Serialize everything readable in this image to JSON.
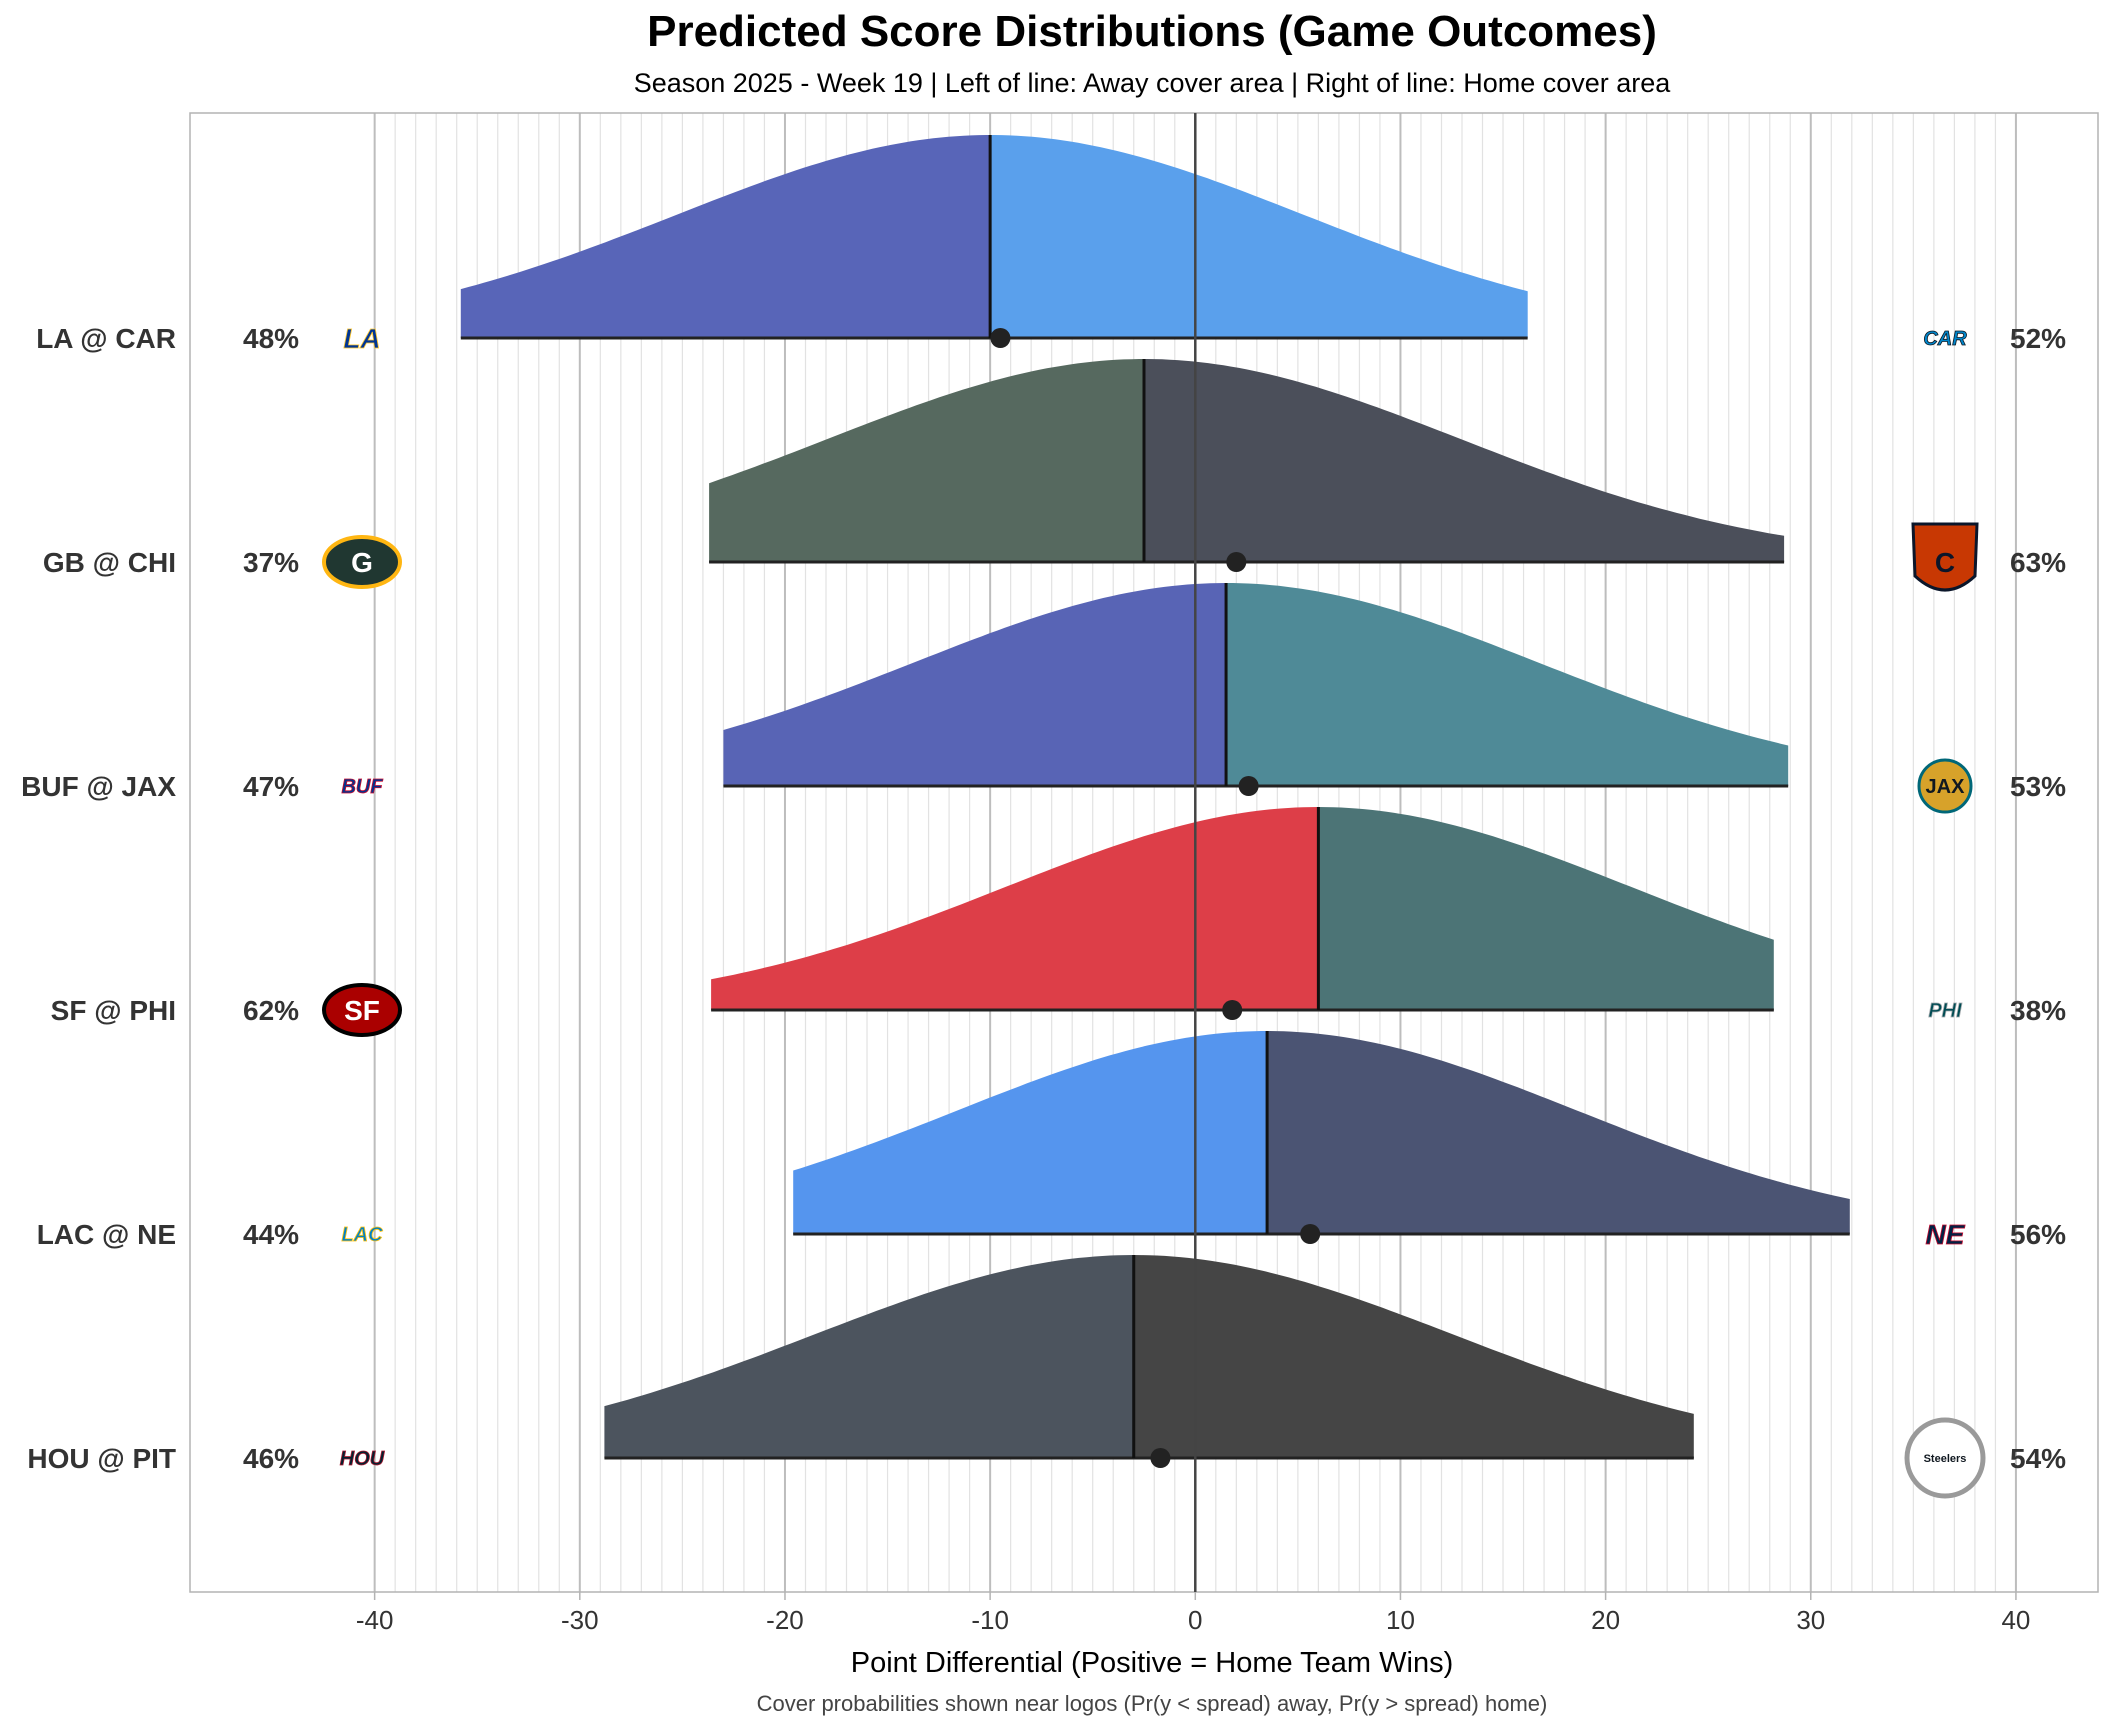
{
  "chart_data": {
    "type": "ridgeline",
    "title": "Predicted Score Distributions (Game Outcomes)",
    "subtitle": "Season 2025 - Week 19 | Left of line: Away cover area | Right of line: Home cover area",
    "xlabel": "Point Differential (Positive = Home Team Wins)",
    "caption": "Cover probabilities shown near logos (Pr(y < spread) away, Pr(y > spread) home)",
    "xlim": [
      -49,
      44
    ],
    "x_ticks": [
      -40,
      -30,
      -20,
      -10,
      0,
      10,
      20,
      30,
      40
    ],
    "x_tick_labels": [
      "-40",
      "-30",
      "-20",
      "-10",
      "0",
      "10",
      "20",
      "30",
      "40"
    ],
    "zero_line": 0,
    "games": [
      {
        "label": "LA @ CAR",
        "away": "LA",
        "home": "CAR",
        "range": [
          -35.8,
          16.2
        ],
        "mode": -10,
        "spread": -10,
        "predicted": -9.5,
        "away_pct": "48%",
        "home_pct": "52%",
        "away_color": "#5865b8",
        "home_color": "#5aa0ec",
        "away_logo": {
          "name": "rams-logo",
          "text": "LA",
          "bg": "#ffffff",
          "fg": "#003594",
          "accent": "#ffc72c",
          "shape": "plain"
        },
        "home_logo": {
          "name": "panthers-logo",
          "text": "CAR",
          "bg": "#ffffff",
          "fg": "#0085ca",
          "accent": "#101820",
          "shape": "plain"
        }
      },
      {
        "label": "GB @ CHI",
        "away": "GB",
        "home": "CHI",
        "range": [
          -23.7,
          28.7
        ],
        "mode": -2.5,
        "spread": -2.5,
        "predicted": 2,
        "away_pct": "37%",
        "home_pct": "63%",
        "away_color": "#56695f",
        "home_color": "#4b4f5a",
        "away_logo": {
          "name": "packers-logo",
          "text": "G",
          "bg": "#203731",
          "fg": "#ffffff",
          "accent": "#ffb612",
          "shape": "oval"
        },
        "home_logo": {
          "name": "bears-logo",
          "text": "C",
          "bg": "#c83803",
          "fg": "#0b162a",
          "accent": "#0b162a",
          "shape": "shield"
        }
      },
      {
        "label": "BUF @ JAX",
        "away": "BUF",
        "home": "JAX",
        "range": [
          -23,
          28.9
        ],
        "mode": 1.5,
        "spread": 1.5,
        "predicted": 2.6,
        "away_pct": "47%",
        "home_pct": "53%",
        "away_color": "#5864b5",
        "home_color": "#4f8a97",
        "away_logo": {
          "name": "bills-logo",
          "text": "BUF",
          "bg": "#ffffff",
          "fg": "#00338d",
          "accent": "#c60c30",
          "shape": "plain"
        },
        "home_logo": {
          "name": "jaguars-logo",
          "text": "JAX",
          "bg": "#d7a22a",
          "fg": "#101820",
          "accent": "#006778",
          "shape": "round"
        }
      },
      {
        "label": "SF @ PHI",
        "away": "SF",
        "home": "PHI",
        "range": [
          -23.6,
          28.2
        ],
        "mode": 6,
        "spread": 6,
        "predicted": 1.8,
        "away_pct": "62%",
        "home_pct": "38%",
        "away_color": "#dd3e48",
        "home_color": "#4c7476",
        "away_logo": {
          "name": "49ers-logo",
          "text": "SF",
          "bg": "#aa0000",
          "fg": "#ffffff",
          "accent": "#000000",
          "shape": "oval"
        },
        "home_logo": {
          "name": "eagles-logo",
          "text": "PHI",
          "bg": "#ffffff",
          "fg": "#004c54",
          "accent": "#a5acaf",
          "shape": "plain"
        }
      },
      {
        "label": "LAC @ NE",
        "away": "LAC",
        "home": "NE",
        "range": [
          -19.6,
          31.9
        ],
        "mode": 3.5,
        "spread": 3.5,
        "predicted": 5.6,
        "away_pct": "44%",
        "home_pct": "56%",
        "away_color": "#5595ee",
        "home_color": "#4b5473",
        "away_logo": {
          "name": "chargers-logo",
          "text": "LAC",
          "bg": "#ffffff",
          "fg": "#0080c6",
          "accent": "#ffc20e",
          "shape": "plain"
        },
        "home_logo": {
          "name": "patriots-logo",
          "text": "NE",
          "bg": "#ffffff",
          "fg": "#002244",
          "accent": "#c60c30",
          "shape": "plain"
        }
      },
      {
        "label": "HOU @ PIT",
        "away": "HOU",
        "home": "PIT",
        "range": [
          -28.8,
          24.3
        ],
        "mode": -3,
        "spread": -3,
        "predicted": -1.7,
        "away_pct": "46%",
        "home_pct": "54%",
        "away_color": "#4c545e",
        "home_color": "#454545",
        "away_logo": {
          "name": "texans-logo",
          "text": "HOU",
          "bg": "#ffffff",
          "fg": "#03202f",
          "accent": "#a71930",
          "shape": "plain"
        },
        "home_logo": {
          "name": "steelers-logo",
          "text": "Steelers",
          "bg": "#ffffff",
          "fg": "#101820",
          "accent": "#ffb612",
          "shape": "ring"
        }
      }
    ]
  }
}
